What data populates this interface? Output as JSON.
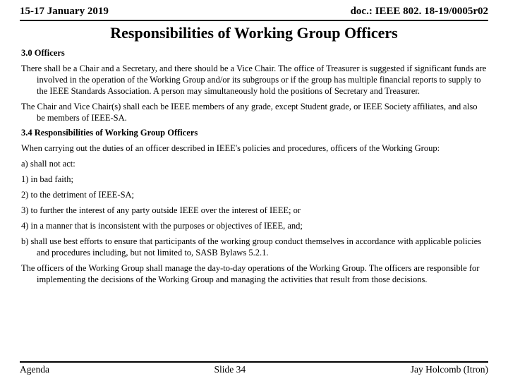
{
  "header": {
    "date": "15-17 January 2019",
    "doc": "doc.: IEEE 802. 18-19/0005r02"
  },
  "title": "Responsibilities of Working Group Officers",
  "body": {
    "h1": "3.0 Officers",
    "p1": "There shall be a Chair and a Secretary, and there should be a Vice Chair. The office of Treasurer is suggested if significant funds are involved in the operation of the Working Group and/or its subgroups or if the group has multiple financial reports to supply to the IEEE Standards Association. A person may simultaneously hold the positions of Secretary and Treasurer.",
    "p2": "The Chair and Vice Chair(s) shall each be IEEE members of any grade, except Student grade, or IEEE Society affiliates, and also be members of IEEE-SA.",
    "h2": "3.4 Responsibilities of Working Group Officers",
    "p3": "When carrying out the duties of an officer described in IEEE's policies and procedures, officers of the Working Group:",
    "p4": "a) shall not act:",
    "p5": "1) in bad faith;",
    "p6": "2) to the detriment of IEEE-SA;",
    "p7": "3) to further the interest of any party outside IEEE over the interest of IEEE; or",
    "p8": "4) in a manner that is inconsistent with the purposes or objectives of IEEE, and;",
    "p9": "b) shall use best efforts to ensure that participants of the working group conduct themselves in accordance with applicable policies and procedures including, but not limited to, SASB Bylaws 5.2.1.",
    "p10": "The officers of the Working Group shall manage the day-to-day operations of the Working Group. The officers are responsible for implementing the decisions of the Working Group and managing the activities that result from those decisions."
  },
  "footer": {
    "left": "Agenda",
    "center": "Slide 34",
    "right": "Jay Holcomb (Itron)"
  }
}
